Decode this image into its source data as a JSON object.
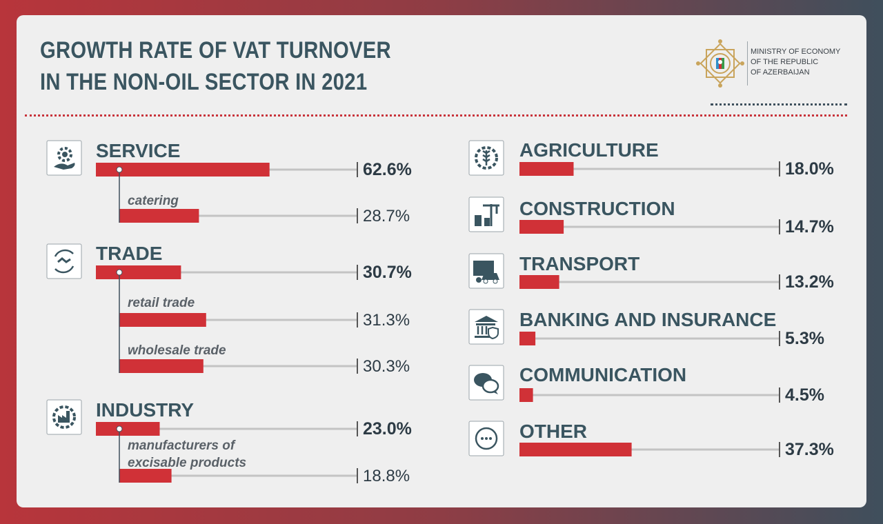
{
  "header": {
    "title_line1": "GROWTH RATE OF VAT TURNOVER",
    "title_line2": "IN THE NON-OIL SECTOR IN 2021"
  },
  "ministry": {
    "line1": "MINISTRY OF ECONOMY",
    "line2": "OF THE REPUBLIC",
    "line3": "OF AZERBAIJAN"
  },
  "colors": {
    "bar": "#d03137",
    "track": "#c3c3c3",
    "title": "#3a5560",
    "text": "#2d3b45",
    "icon": "#3a5560"
  },
  "chart_data": {
    "type": "bar",
    "title": "GROWTH RATE OF VAT TURNOVER IN THE NON-OIL SECTOR IN 2021",
    "unit": "%",
    "xlim": [
      0,
      100
    ],
    "series": [
      {
        "values": [
          {
            "category": "SERVICE",
            "value": 62.6,
            "label": "62.6%",
            "level": "main",
            "icon": "hand-gear-icon"
          },
          {
            "category": "catering",
            "value": 28.7,
            "label": "28.7%",
            "level": "sub",
            "parent": "SERVICE"
          },
          {
            "category": "TRADE",
            "value": 30.7,
            "label": "30.7%",
            "level": "main",
            "icon": "handshake-cycle-icon"
          },
          {
            "category": "retail trade",
            "value": 31.3,
            "label": "31.3%",
            "level": "sub",
            "parent": "TRADE"
          },
          {
            "category": "wholesale trade",
            "value": 30.3,
            "label": "30.3%",
            "level": "sub",
            "parent": "TRADE"
          },
          {
            "category": "INDUSTRY",
            "value": 23.0,
            "label": "23.0%",
            "level": "main",
            "icon": "factory-gear-icon"
          },
          {
            "category": "manufacturers of excisable products",
            "category_lines": [
              "manufacturers of",
              "excisable products"
            ],
            "value": 18.8,
            "label": "18.8%",
            "level": "sub",
            "parent": "INDUSTRY"
          },
          {
            "category": "AGRICULTURE",
            "value": 18.0,
            "label": "18.0%",
            "level": "main",
            "icon": "wheat-gear-icon"
          },
          {
            "category": "CONSTRUCTION",
            "value": 14.7,
            "label": "14.7%",
            "level": "main",
            "icon": "crane-icon"
          },
          {
            "category": "TRANSPORT",
            "value": 13.2,
            "label": "13.2%",
            "level": "main",
            "icon": "truck-car-icon"
          },
          {
            "category": "BANKING AND INSURANCE",
            "value": 5.3,
            "label": "5.3%",
            "level": "main",
            "icon": "bank-shield-icon"
          },
          {
            "category": "COMMUNICATION",
            "value": 4.5,
            "label": "4.5%",
            "level": "main",
            "icon": "chat-bubbles-icon"
          },
          {
            "category": "OTHER",
            "value": 37.3,
            "label": "37.3%",
            "level": "main",
            "icon": "more-dots-icon"
          }
        ]
      }
    ]
  }
}
